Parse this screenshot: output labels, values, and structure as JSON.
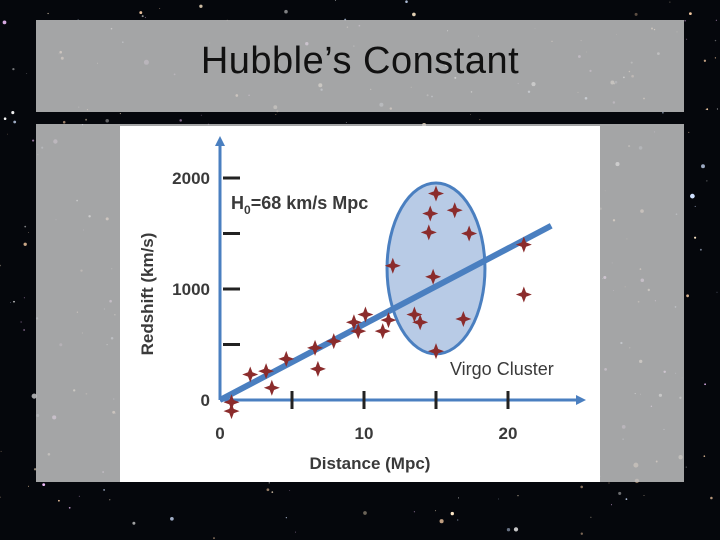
{
  "slide": {
    "title": "Hubble’s Constant"
  },
  "chart_data": {
    "type": "scatter",
    "xlabel": "Distance (Mpc)",
    "ylabel": "Redshift (km/s)",
    "xlim": [
      0,
      25
    ],
    "ylim": [
      0,
      2200
    ],
    "x_ticks": [
      0,
      10,
      20
    ],
    "x_minor_ticks": [
      5,
      15
    ],
    "y_ticks": [
      0,
      1000,
      2000
    ],
    "y_minor_ticks": [
      500,
      1500
    ],
    "annotation_h0_prefix": "H",
    "annotation_h0_sub": "0",
    "annotation_h0_rest": "=68 km/s Mpc",
    "cluster_label": "Virgo Cluster",
    "fit_line": {
      "x": [
        0,
        23
      ],
      "y": [
        0,
        1570
      ],
      "color": "#4a7fc0"
    },
    "cluster_region": {
      "cx": 15,
      "cy": 1185,
      "rx": 3.4,
      "ry": 770,
      "fill": "#b8cbe6",
      "stroke": "#4a7fc0"
    },
    "point_color": "#8b2c2c",
    "axis_color": "#4a7fc0",
    "points": [
      {
        "x": 0.8,
        "y": -20
      },
      {
        "x": 0.8,
        "y": -100
      },
      {
        "x": 2.1,
        "y": 230
      },
      {
        "x": 3.2,
        "y": 260
      },
      {
        "x": 3.6,
        "y": 110
      },
      {
        "x": 4.6,
        "y": 370
      },
      {
        "x": 6.6,
        "y": 470
      },
      {
        "x": 6.8,
        "y": 280
      },
      {
        "x": 7.9,
        "y": 530
      },
      {
        "x": 9.3,
        "y": 700
      },
      {
        "x": 9.6,
        "y": 620
      },
      {
        "x": 10.1,
        "y": 770
      },
      {
        "x": 11.3,
        "y": 620
      },
      {
        "x": 11.7,
        "y": 720
      },
      {
        "x": 12.0,
        "y": 1210
      },
      {
        "x": 13.5,
        "y": 770
      },
      {
        "x": 13.9,
        "y": 700
      },
      {
        "x": 14.5,
        "y": 1510
      },
      {
        "x": 14.6,
        "y": 1680
      },
      {
        "x": 14.8,
        "y": 1110
      },
      {
        "x": 15.0,
        "y": 1860
      },
      {
        "x": 15.0,
        "y": 440
      },
      {
        "x": 16.3,
        "y": 1710
      },
      {
        "x": 16.9,
        "y": 730
      },
      {
        "x": 17.3,
        "y": 1500
      },
      {
        "x": 21.1,
        "y": 1400
      },
      {
        "x": 21.1,
        "y": 950
      }
    ]
  }
}
